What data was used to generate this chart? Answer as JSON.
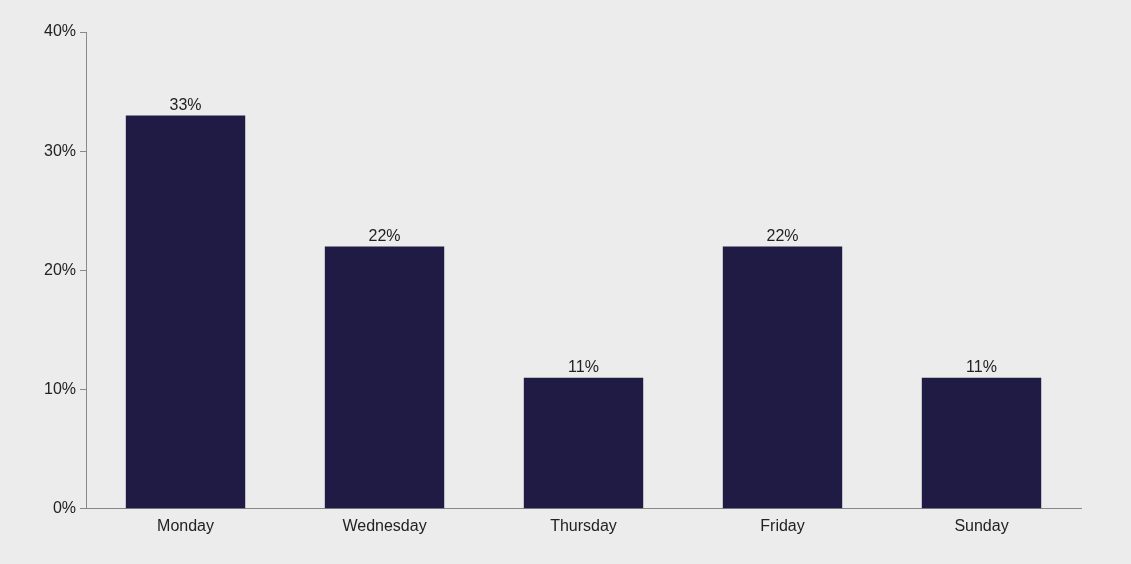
{
  "chart_data": {
    "type": "bar",
    "categories": [
      "Monday",
      "Wednesday",
      "Thursday",
      "Friday",
      "Sunday"
    ],
    "values": [
      33,
      22,
      11,
      22,
      11
    ],
    "color": "#1f1b45",
    "value_labels": [
      "33%",
      "22%",
      "11%",
      "22%",
      "11%"
    ],
    "ylim": [
      0,
      40
    ],
    "yticks": [
      {
        "value": 0,
        "label": "0%"
      },
      {
        "value": 10,
        "label": "10%"
      },
      {
        "value": 20,
        "label": "20%"
      },
      {
        "value": 30,
        "label": "30%"
      },
      {
        "value": 40,
        "label": "40%"
      }
    ],
    "grid": false,
    "legend": false
  }
}
